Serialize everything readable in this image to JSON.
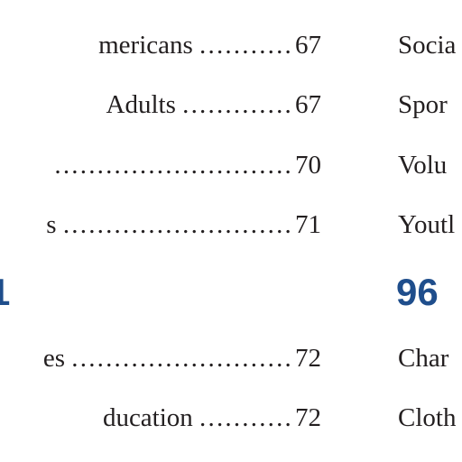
{
  "left_column": {
    "entries": [
      {
        "text": "mericans",
        "dots": "...........",
        "page": "67"
      },
      {
        "text": "Adults",
        "dots": ".............",
        "page": "67"
      },
      {
        "text": "",
        "dots": "............................",
        "page": "70"
      },
      {
        "text": "s",
        "dots": "...........................",
        "page": "71"
      },
      {
        "text": "es",
        "dots": "..........................",
        "page": "72"
      },
      {
        "text": "ducation",
        "dots": "...........",
        "page": "72"
      }
    ],
    "section_heading": "1"
  },
  "right_column": {
    "entries": [
      {
        "text": "Socia"
      },
      {
        "text": "Spor"
      },
      {
        "text": "Volu"
      },
      {
        "text": "Youtl"
      },
      {
        "text": "Char"
      },
      {
        "text": "Cloth"
      }
    ],
    "section_heading": "96"
  },
  "colors": {
    "text": "#231f20",
    "heading": "#1f4e8c"
  }
}
